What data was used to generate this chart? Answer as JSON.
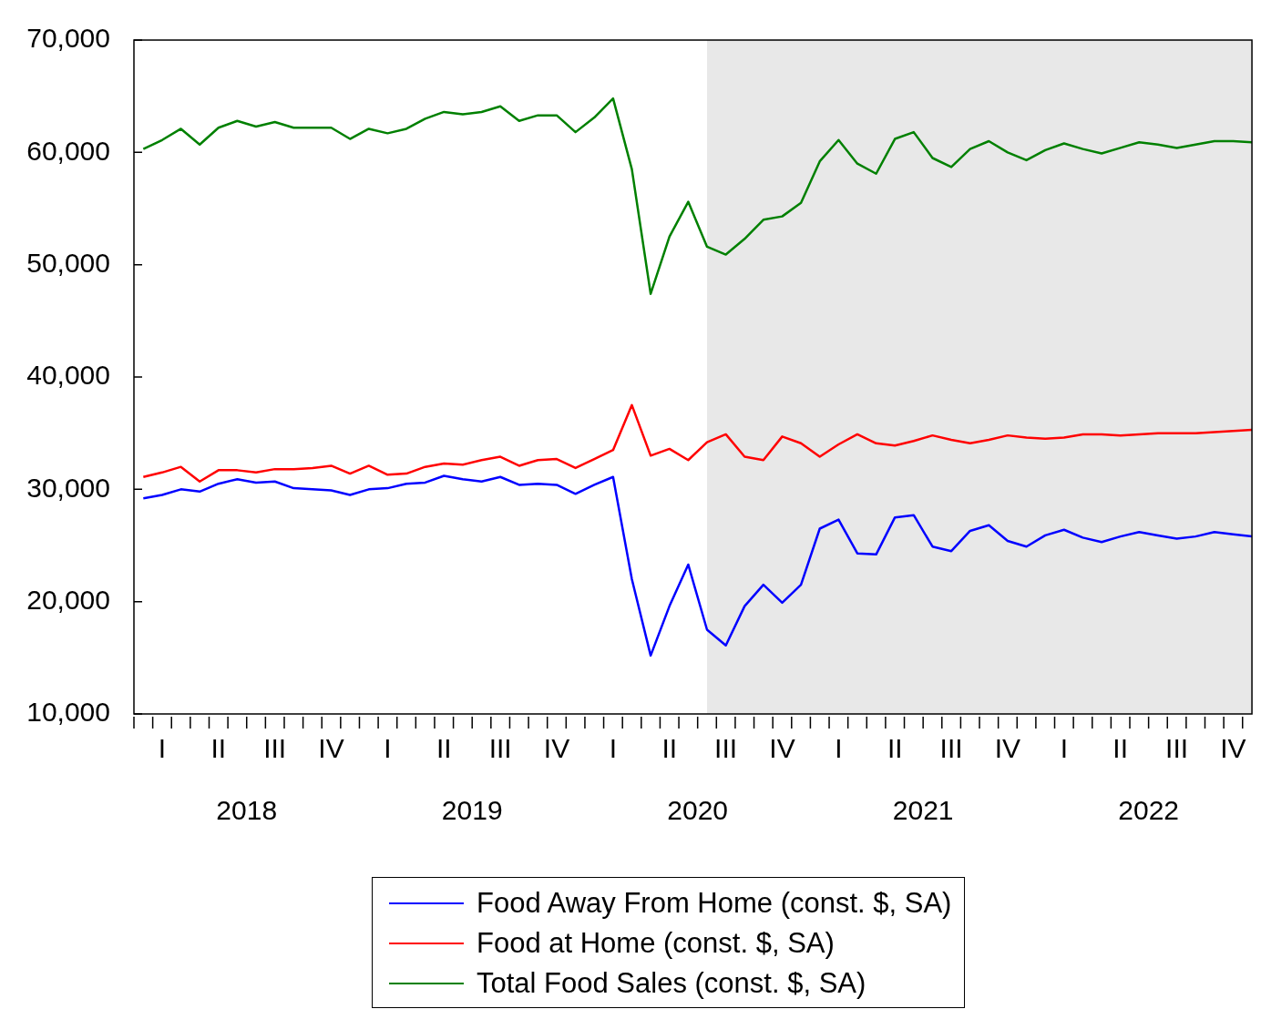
{
  "chart_data": {
    "type": "line",
    "x": [
      "2018-01",
      "2018-02",
      "2018-03",
      "2018-04",
      "2018-05",
      "2018-06",
      "2018-07",
      "2018-08",
      "2018-09",
      "2018-10",
      "2018-11",
      "2018-12",
      "2019-01",
      "2019-02",
      "2019-03",
      "2019-04",
      "2019-05",
      "2019-06",
      "2019-07",
      "2019-08",
      "2019-09",
      "2019-10",
      "2019-11",
      "2019-12",
      "2020-01",
      "2020-02",
      "2020-03",
      "2020-04",
      "2020-05",
      "2020-06",
      "2020-07",
      "2020-08",
      "2020-09",
      "2020-10",
      "2020-11",
      "2020-12",
      "2021-01",
      "2021-02",
      "2021-03",
      "2021-04",
      "2021-05",
      "2021-06",
      "2021-07",
      "2021-08",
      "2021-09",
      "2021-10",
      "2021-11",
      "2021-12",
      "2022-01",
      "2022-02",
      "2022-03",
      "2022-04",
      "2022-05",
      "2022-06",
      "2022-07",
      "2022-08",
      "2022-09",
      "2022-10",
      "2022-11",
      "2022-12"
    ],
    "series": [
      {
        "name": "Food Away From Home (const. $, SA)",
        "color": "#0000ff",
        "values": [
          29200,
          29500,
          30000,
          29800,
          30500,
          30900,
          30600,
          30700,
          30100,
          30000,
          29900,
          29500,
          30000,
          30100,
          30500,
          30600,
          31200,
          30900,
          30700,
          31100,
          30400,
          30500,
          30400,
          29600,
          30400,
          31100,
          22000,
          15200,
          19600,
          23300,
          17500,
          16100,
          19600,
          21500,
          19900,
          21500,
          26500,
          27300,
          24300,
          24200,
          27500,
          27700,
          24900,
          24500,
          26300,
          26800,
          25400,
          24900,
          25900,
          26400,
          25700,
          25300,
          25800,
          26200,
          25900,
          25600,
          25800,
          26200,
          26000,
          25800
        ]
      },
      {
        "name": "Food at Home (const. $, SA)",
        "color": "#ff0000",
        "values": [
          31100,
          31500,
          32000,
          30700,
          31700,
          31700,
          31500,
          31800,
          31800,
          31900,
          32100,
          31400,
          32100,
          31300,
          31400,
          32000,
          32300,
          32200,
          32600,
          32900,
          32100,
          32600,
          32700,
          31900,
          32700,
          33500,
          37500,
          33000,
          33600,
          32600,
          34200,
          34900,
          32900,
          32600,
          34700,
          34100,
          32900,
          34000,
          34900,
          34100,
          33900,
          34300,
          34800,
          34400,
          34100,
          34400,
          34800,
          34600,
          34500,
          34600,
          34900,
          34900,
          34800,
          34900,
          35000,
          35000,
          35000,
          35100,
          35200,
          35300
        ]
      },
      {
        "name": "Total Food Sales (const. $, SA)",
        "color": "#008000",
        "values": [
          60300,
          61100,
          62100,
          60700,
          62200,
          62800,
          62300,
          62700,
          62200,
          62200,
          62200,
          61200,
          62100,
          61700,
          62100,
          63000,
          63600,
          63400,
          63600,
          64100,
          62800,
          63300,
          63300,
          61800,
          63100,
          64800,
          58500,
          47400,
          52500,
          55600,
          51600,
          50900,
          52300,
          54000,
          54300,
          55500,
          59200,
          61100,
          59000,
          58100,
          61200,
          61800,
          59500,
          58700,
          60300,
          61000,
          60000,
          59300,
          60200,
          60800,
          60300,
          59900,
          60400,
          60900,
          60700,
          60400,
          60700,
          61000,
          61000,
          60900
        ]
      }
    ],
    "xlim": [
      "2017-12-16",
      "2022-12"
    ],
    "xticks": [
      {
        "value": "2018-06-16",
        "label": "2018"
      },
      {
        "value": "2019-06-16",
        "label": "2019"
      },
      {
        "value": "2020-06-16",
        "label": "2020"
      },
      {
        "value": "2021-06-16",
        "label": "2021"
      },
      {
        "value": "2022-06-16",
        "label": "2022"
      }
    ],
    "annotations": [
      "I",
      "II",
      "III",
      "IV",
      "I",
      "II",
      "III",
      "IV",
      "I",
      "II",
      "III",
      "IV",
      "I",
      "II",
      "III",
      "IV",
      "I",
      "II",
      "III",
      "IV"
    ],
    "ylim": [
      10000,
      70000
    ],
    "yticks": [
      {
        "value": 10000,
        "label": "10,000"
      },
      {
        "value": 20000,
        "label": "20,000"
      },
      {
        "value": 30000,
        "label": "30,000"
      },
      {
        "value": 40000,
        "label": "40,000"
      },
      {
        "value": 50000,
        "label": "50,000"
      },
      {
        "value": 60000,
        "label": "60,000"
      },
      {
        "value": 70000,
        "label": "70,000"
      }
    ],
    "bands": [
      {
        "axis": "x",
        "from": "2020-07",
        "to": "2022-12",
        "color": "#e8e8e8"
      }
    ],
    "legend": "bottom"
  }
}
